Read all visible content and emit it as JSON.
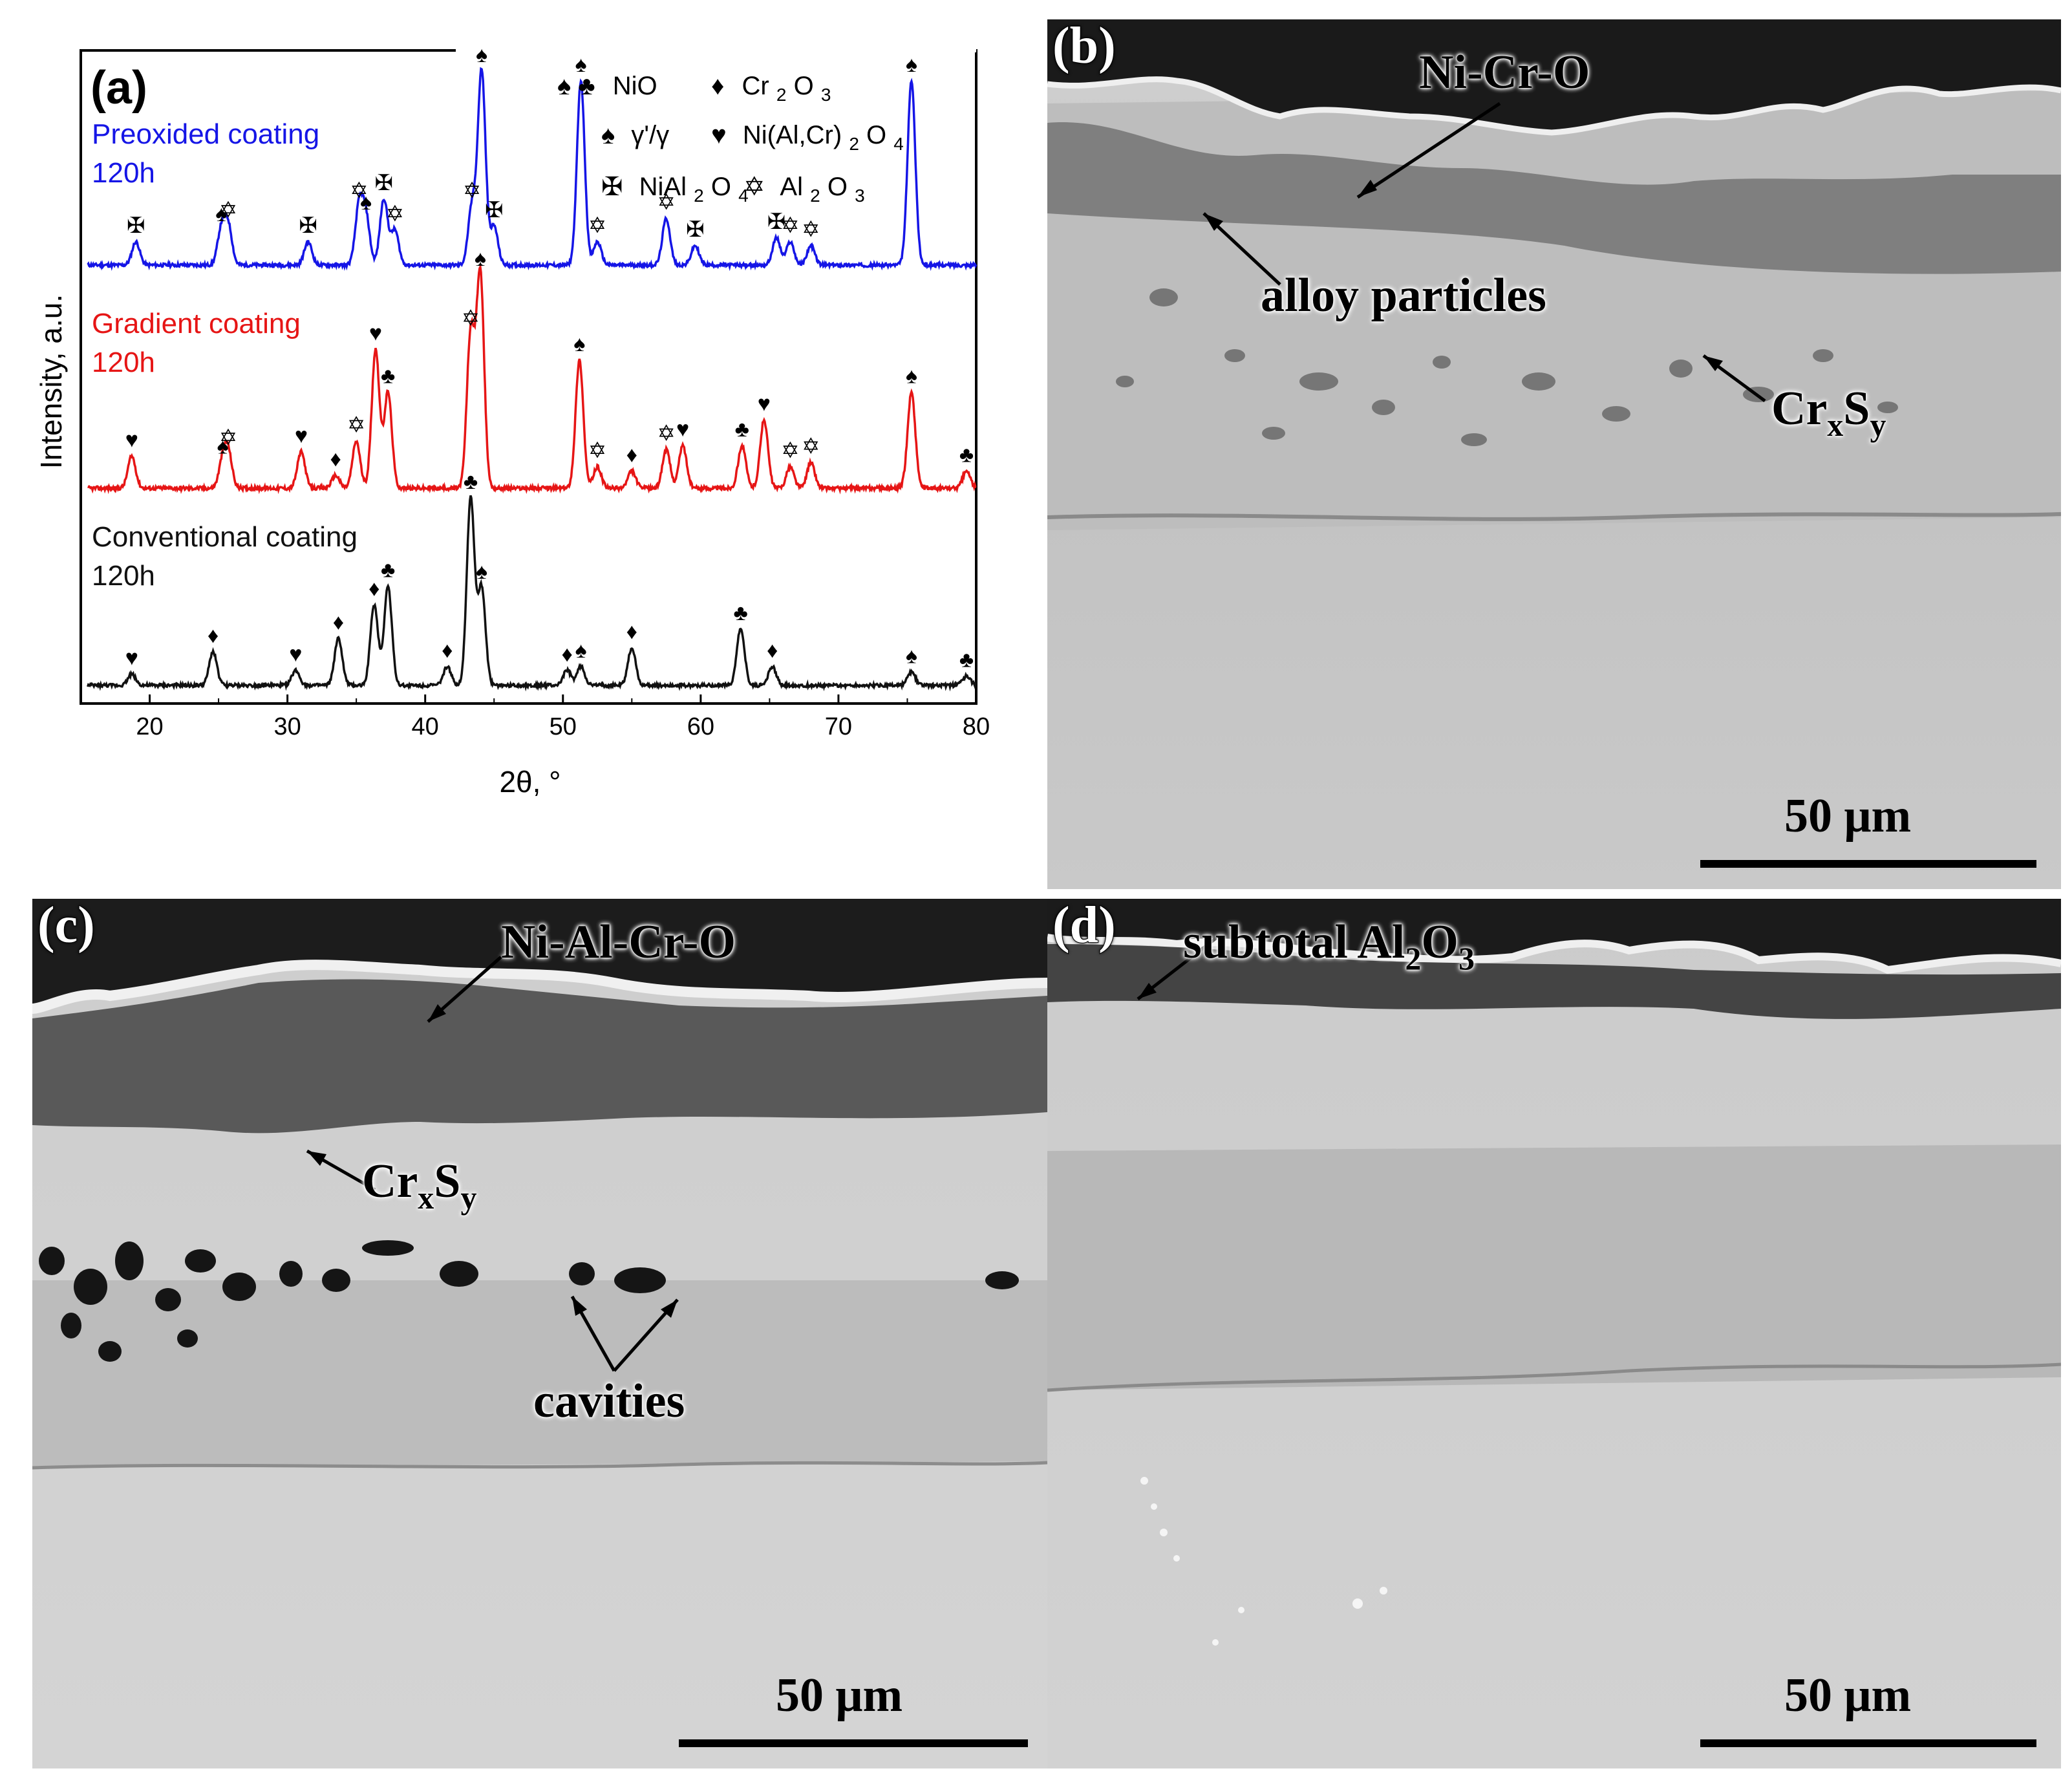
{
  "panel_a": {
    "tag": "(a)",
    "ylabel": "Intensity, a.u.",
    "xlabel": "2θ, °",
    "curve_labels": [
      {
        "line1": "Preoxided coating",
        "line2": "120h",
        "color": "#1515e6"
      },
      {
        "line1": "Gradient coating",
        "line2": "120h",
        "color": "#e61515"
      },
      {
        "line1": "Conventional coating",
        "line2": "120h",
        "color": "#111111"
      }
    ],
    "legend": {
      "nio_symbols": "♠ ♣",
      "nio": "NiO",
      "cr2o3_symbol": "♦",
      "cr2o3": "Cr",
      "cr2o3_sub1": "2",
      "cr2o3_o": "O",
      "cr2o3_sub2": "3",
      "gamma_symbol": "♠",
      "gamma": "γ'/γ",
      "spinel_symbol": "♥",
      "spinel": "Ni(Al,Cr)",
      "spinel_sub1": "2",
      "spinel_o": "O",
      "spinel_sub2": "4",
      "nial_symbol": "✠",
      "nial": "NiAl",
      "nial_sub1": "2",
      "nial_o": "O",
      "nial_sub2": "4",
      "al2o3_symbol": "✡",
      "al2o3": "Al",
      "al2o3_sub1": "2",
      "al2o3_o": "O",
      "al2o3_sub2": "3"
    },
    "symbols": {
      "spade": "♠",
      "club": "♣",
      "diamond": "♦",
      "heart": "♥",
      "cross": "✠",
      "star": "✡"
    }
  },
  "chart_data": {
    "type": "line",
    "xlabel": "2θ, °",
    "ylabel": "Intensity, a.u.",
    "xlim": [
      15,
      80
    ],
    "xticks": [
      20,
      30,
      40,
      50,
      60,
      70,
      80
    ],
    "series": [
      {
        "name": "Preoxided coating 120h",
        "color": "#1515e6",
        "peaks": [
          {
            "x": 19.0,
            "h": 0.12,
            "m": "cross"
          },
          {
            "x": 25.2,
            "h": 0.18,
            "m": "spade"
          },
          {
            "x": 25.7,
            "h": 0.2,
            "m": "star"
          },
          {
            "x": 31.5,
            "h": 0.12,
            "m": "cross"
          },
          {
            "x": 35.2,
            "h": 0.3,
            "m": "star"
          },
          {
            "x": 35.7,
            "h": 0.24,
            "m": "spade"
          },
          {
            "x": 37.0,
            "h": 0.34,
            "m": "cross"
          },
          {
            "x": 37.8,
            "h": 0.18,
            "m": "star"
          },
          {
            "x": 43.4,
            "h": 0.3,
            "m": "star"
          },
          {
            "x": 44.1,
            "h": 1.0,
            "m": "spade"
          },
          {
            "x": 45.0,
            "h": 0.2,
            "m": "cross"
          },
          {
            "x": 51.3,
            "h": 0.95,
            "m": "spade"
          },
          {
            "x": 52.5,
            "h": 0.12,
            "m": "star"
          },
          {
            "x": 57.5,
            "h": 0.24,
            "m": "star"
          },
          {
            "x": 59.6,
            "h": 0.1,
            "m": "cross"
          },
          {
            "x": 65.5,
            "h": 0.14,
            "m": "cross"
          },
          {
            "x": 66.5,
            "h": 0.12,
            "m": "star"
          },
          {
            "x": 68.0,
            "h": 0.1,
            "m": "star"
          },
          {
            "x": 75.3,
            "h": 0.95,
            "m": "spade"
          }
        ]
      },
      {
        "name": "Gradient coating 120h",
        "color": "#e61515",
        "peaks": [
          {
            "x": 18.7,
            "h": 0.15,
            "m": "heart"
          },
          {
            "x": 25.3,
            "h": 0.12,
            "m": "spade"
          },
          {
            "x": 25.7,
            "h": 0.16,
            "m": "star"
          },
          {
            "x": 31.0,
            "h": 0.17,
            "m": "heart"
          },
          {
            "x": 33.5,
            "h": 0.06,
            "m": "diamond"
          },
          {
            "x": 35.0,
            "h": 0.22,
            "m": "star"
          },
          {
            "x": 36.4,
            "h": 0.65,
            "m": "heart"
          },
          {
            "x": 37.3,
            "h": 0.45,
            "m": "club"
          },
          {
            "x": 43.3,
            "h": 0.72,
            "m": "star"
          },
          {
            "x": 44.0,
            "h": 1.0,
            "m": "spade"
          },
          {
            "x": 51.2,
            "h": 0.6,
            "m": "spade"
          },
          {
            "x": 52.5,
            "h": 0.1,
            "m": "star"
          },
          {
            "x": 55.0,
            "h": 0.08,
            "m": "diamond"
          },
          {
            "x": 57.5,
            "h": 0.18,
            "m": "star"
          },
          {
            "x": 58.7,
            "h": 0.2,
            "m": "heart"
          },
          {
            "x": 63.0,
            "h": 0.2,
            "m": "club"
          },
          {
            "x": 64.6,
            "h": 0.32,
            "m": "heart"
          },
          {
            "x": 66.5,
            "h": 0.1,
            "m": "star"
          },
          {
            "x": 68.0,
            "h": 0.12,
            "m": "star"
          },
          {
            "x": 75.3,
            "h": 0.45,
            "m": "spade"
          },
          {
            "x": 79.3,
            "h": 0.08,
            "m": "club"
          }
        ]
      },
      {
        "name": "Conventional coating 120h",
        "color": "#111111",
        "peaks": [
          {
            "x": 18.7,
            "h": 0.06,
            "m": "heart"
          },
          {
            "x": 24.6,
            "h": 0.18,
            "m": "diamond"
          },
          {
            "x": 30.6,
            "h": 0.08,
            "m": "heart"
          },
          {
            "x": 33.7,
            "h": 0.25,
            "m": "diamond"
          },
          {
            "x": 36.3,
            "h": 0.43,
            "m": "diamond"
          },
          {
            "x": 37.3,
            "h": 0.53,
            "m": "club"
          },
          {
            "x": 41.6,
            "h": 0.1,
            "m": "diamond"
          },
          {
            "x": 43.3,
            "h": 1.0,
            "m": "club"
          },
          {
            "x": 44.1,
            "h": 0.52,
            "m": "spade"
          },
          {
            "x": 50.3,
            "h": 0.08,
            "m": "diamond"
          },
          {
            "x": 51.3,
            "h": 0.1,
            "m": "spade"
          },
          {
            "x": 55.0,
            "h": 0.2,
            "m": "diamond"
          },
          {
            "x": 62.9,
            "h": 0.3,
            "m": "club"
          },
          {
            "x": 65.2,
            "h": 0.1,
            "m": "diamond"
          },
          {
            "x": 75.3,
            "h": 0.07,
            "m": "spade"
          },
          {
            "x": 79.3,
            "h": 0.05,
            "m": "club"
          }
        ]
      }
    ]
  },
  "panel_b": {
    "tag": "(b)",
    "label_nicro": "Ni-Cr-O",
    "label_alloy": "alloy particles",
    "label_crs": "Cr",
    "label_crs_x": "x",
    "label_crs_s": "S",
    "label_crs_y": "y",
    "scale": "50 μm"
  },
  "panel_c": {
    "tag": "(c)",
    "label_nialcro": "Ni-Al-Cr-O",
    "label_crs": "Cr",
    "label_crs_x": "x",
    "label_crs_s": "S",
    "label_crs_y": "y",
    "label_cavities": "cavities",
    "scale": "50 μm"
  },
  "panel_d": {
    "tag": "(d)",
    "label_al2o3": "subtotal Al",
    "label_al2o3_sub1": "2",
    "label_al2o3_o": "O",
    "label_al2o3_sub2": "3",
    "scale": "50 μm"
  }
}
